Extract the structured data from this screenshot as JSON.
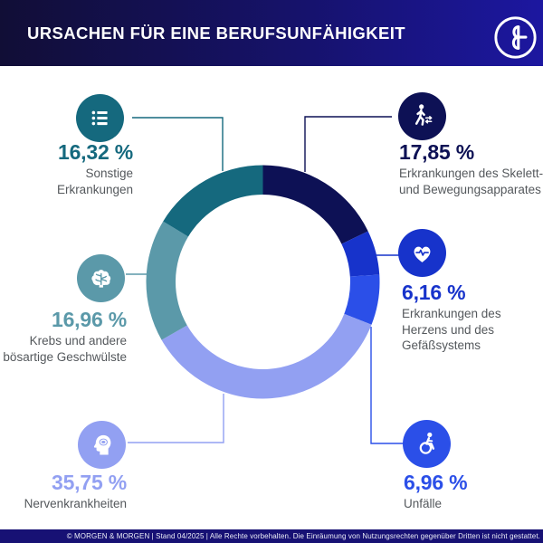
{
  "header": {
    "title": "URSACHEN FÜR EINE BERUFSUNFÄHIGKEIT",
    "logo_icon": "morgen-morgen-ampersand-icon"
  },
  "footer": {
    "text": "© MORGEN & MORGEN | Stand 04/2025 | Alle Rechte vorbehalten. Die Einräumung von Nutzungsrechten gegenüber Dritten ist nicht gestattet."
  },
  "colors": {
    "header_gradient_left": "#110e36",
    "header_gradient_right": "#1c17a0",
    "footer_bg": "#171174",
    "label_gray": "#54585c",
    "white": "#ffffff"
  },
  "chart_data": {
    "type": "pie",
    "variant": "donut",
    "title": "Ursachen für eine Berufsunfähigkeit",
    "unit": "%",
    "start_angle_deg": 0,
    "direction": "clockwise",
    "legend_position": "around",
    "segments": [
      {
        "id": "skelett",
        "label": "Erkrankungen des Skelett-\nund Bewegungsapparates",
        "value": 17.85,
        "display": "17,85 %",
        "color": "#0d1155",
        "icon": "walking-person-icon"
      },
      {
        "id": "herz",
        "label": "Erkrankungen des\nHerzens und des\nGefäßsystems",
        "value": 6.16,
        "display": "6,16 %",
        "color": "#1733cb",
        "icon": "heart-pulse-icon"
      },
      {
        "id": "unfaelle",
        "label": "Unfälle",
        "value": 6.96,
        "display": "6,96 %",
        "color": "#2b4fe8",
        "icon": "wheelchair-icon"
      },
      {
        "id": "nerven",
        "label": "Nervenkrankheiten",
        "value": 35.75,
        "display": "35,75 %",
        "color": "#92a0f2",
        "icon": "head-profile-icon"
      },
      {
        "id": "krebs",
        "label": "Krebs und andere\nbösartige Geschwülste",
        "value": 16.96,
        "display": "16,96 %",
        "color": "#5b99a9",
        "icon": "brain-icon"
      },
      {
        "id": "sonstige",
        "label": "Sonstige\nErkrankungen",
        "value": 16.32,
        "display": "16,32 %",
        "color": "#15697e",
        "icon": "list-icon"
      }
    ]
  }
}
